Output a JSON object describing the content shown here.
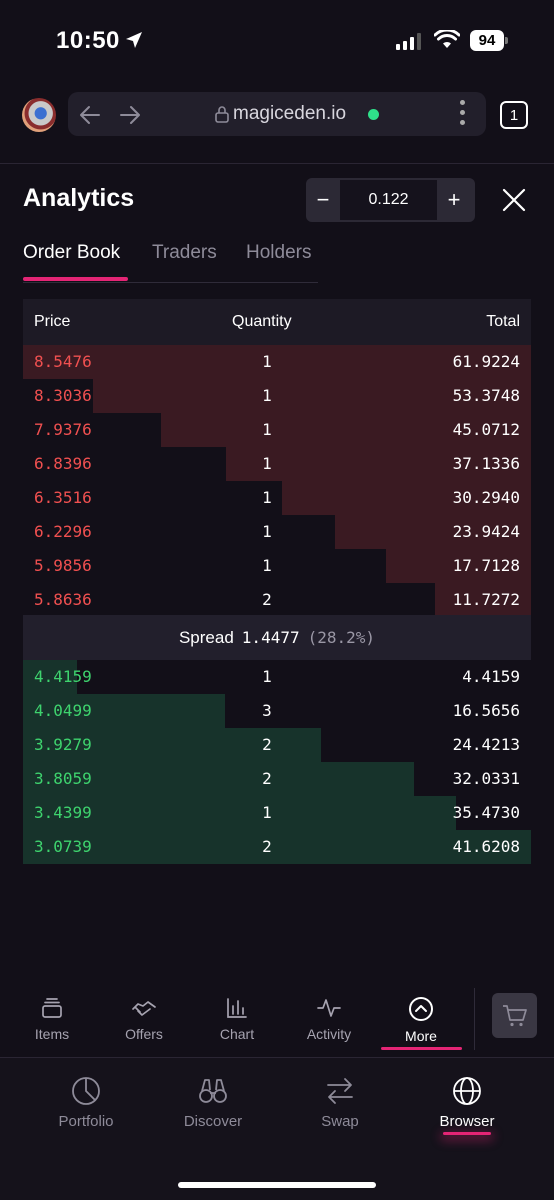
{
  "status_bar": {
    "time": "10:50",
    "battery": "94"
  },
  "browser": {
    "url": "magiceden.io",
    "tab_count": "1"
  },
  "analytics": {
    "title": "Analytics",
    "stepper_value": "0.122",
    "minus_label": "−",
    "plus_label": "+"
  },
  "tabs": [
    {
      "label": "Order Book",
      "active": true
    },
    {
      "label": "Traders",
      "active": false
    },
    {
      "label": "Holders",
      "active": false
    }
  ],
  "order_book": {
    "headers": {
      "price": "Price",
      "quantity": "Quantity",
      "total": "Total"
    },
    "asks": [
      {
        "price": "8.5476",
        "quantity": "1",
        "total": "61.9224"
      },
      {
        "price": "8.3036",
        "quantity": "1",
        "total": "53.3748"
      },
      {
        "price": "7.9376",
        "quantity": "1",
        "total": "45.0712"
      },
      {
        "price": "6.8396",
        "quantity": "1",
        "total": "37.1336"
      },
      {
        "price": "6.3516",
        "quantity": "1",
        "total": "30.2940"
      },
      {
        "price": "6.2296",
        "quantity": "1",
        "total": "23.9424"
      },
      {
        "price": "5.9856",
        "quantity": "1",
        "total": "17.7128"
      },
      {
        "price": "5.8636",
        "quantity": "2",
        "total": "11.7272"
      }
    ],
    "spread": {
      "label": "Spread",
      "value": "1.4477",
      "percent": "(28.2%)"
    },
    "bids": [
      {
        "price": "4.4159",
        "quantity": "1",
        "total": "4.4159"
      },
      {
        "price": "4.0499",
        "quantity": "3",
        "total": "16.5656"
      },
      {
        "price": "3.9279",
        "quantity": "2",
        "total": "24.4213"
      },
      {
        "price": "3.8059",
        "quantity": "2",
        "total": "32.0331"
      },
      {
        "price": "3.4399",
        "quantity": "1",
        "total": "35.4730"
      },
      {
        "price": "3.0739",
        "quantity": "2",
        "total": "41.6208"
      }
    ]
  },
  "market_nav": [
    {
      "label": "Items",
      "icon": "stack-icon"
    },
    {
      "label": "Offers",
      "icon": "handshake-icon"
    },
    {
      "label": "Chart",
      "icon": "bar-chart-icon"
    },
    {
      "label": "Activity",
      "icon": "activity-icon"
    },
    {
      "label": "More",
      "icon": "chevron-up-circle-icon",
      "active": true
    }
  ],
  "app_nav": [
    {
      "label": "Portfolio",
      "icon": "pie-chart-icon"
    },
    {
      "label": "Discover",
      "icon": "binoculars-icon"
    },
    {
      "label": "Swap",
      "icon": "swap-arrows-icon"
    },
    {
      "label": "Browser",
      "icon": "globe-icon",
      "active": true
    }
  ]
}
